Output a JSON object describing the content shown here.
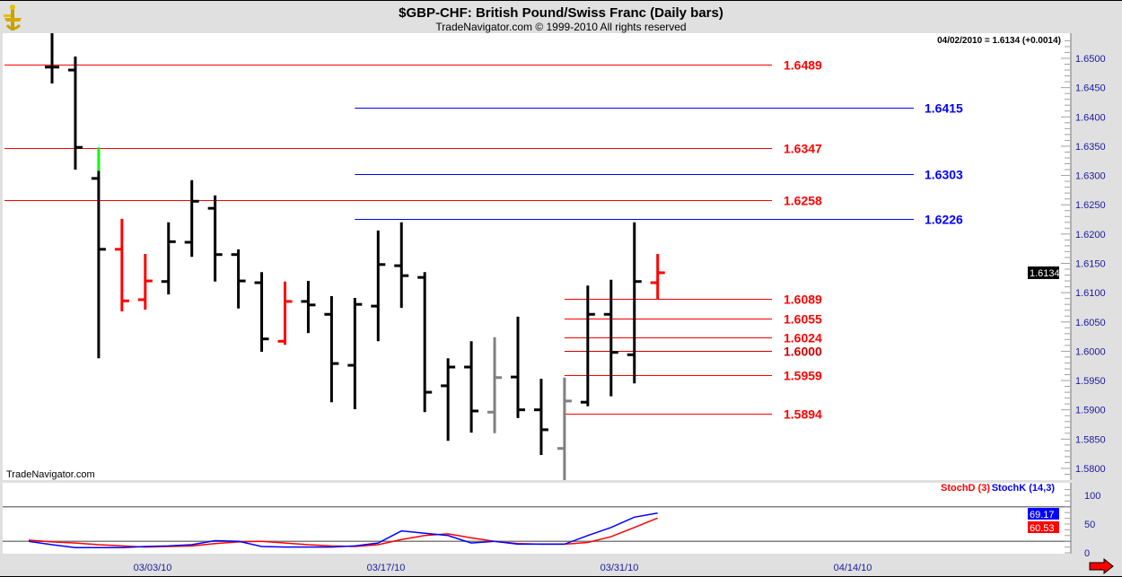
{
  "header": {
    "title": "$GBP-CHF:  British Pound/Swiss Franc  (Daily bars)",
    "subtitle": "TradeNavigator.com © 1999-2010 All rights reserved",
    "last_readout": "04/02/2010 = 1.6134 (+0.0014)",
    "watermark": "TradeNavigator.com"
  },
  "chart_data": [
    {
      "type": "ohlc",
      "ylim": [
        1.578,
        1.655
      ],
      "y_ticks": [
        "1.6500",
        "1.6450",
        "1.6400",
        "1.6350",
        "1.6300",
        "1.6250",
        "1.6200",
        "1.6150",
        "1.6100",
        "1.6050",
        "1.6000",
        "1.5950",
        "1.5900",
        "1.5850",
        "1.5800"
      ],
      "x_tick_labels": [
        "03/03/10",
        "03/17/10",
        "03/31/10",
        "04/14/10"
      ],
      "last_price_label": "1.6134",
      "colors": {
        "default": "#000000",
        "red": "#ff0000",
        "gray": "#808080",
        "green": "#00ff00"
      },
      "bars": [
        {
          "date": "02/25/10",
          "o": 1.6485,
          "h": 1.6545,
          "l": 1.6457,
          "c": 1.6485,
          "color": "default"
        },
        {
          "date": "02/26/10",
          "o": 1.648,
          "h": 1.6503,
          "l": 1.631,
          "c": 1.6348,
          "color": "default"
        },
        {
          "date": "03/01/10",
          "o": 1.6295,
          "h": 1.6348,
          "l": 1.5988,
          "c": 1.6174,
          "color": "default",
          "gap_top": 1.6308
        },
        {
          "date": "03/02/10",
          "o": 1.6174,
          "h": 1.6226,
          "l": 1.6068,
          "c": 1.6086,
          "color": "red"
        },
        {
          "date": "03/03/10",
          "o": 1.6088,
          "h": 1.6166,
          "l": 1.6071,
          "c": 1.612,
          "color": "red"
        },
        {
          "date": "03/04/10",
          "o": 1.6119,
          "h": 1.622,
          "l": 1.6097,
          "c": 1.6187,
          "color": "default"
        },
        {
          "date": "03/05/10",
          "o": 1.6186,
          "h": 1.6292,
          "l": 1.6161,
          "c": 1.6256,
          "color": "default"
        },
        {
          "date": "03/08/10",
          "o": 1.6244,
          "h": 1.6266,
          "l": 1.6119,
          "c": 1.6165,
          "color": "default"
        },
        {
          "date": "03/09/10",
          "o": 1.6165,
          "h": 1.6174,
          "l": 1.6073,
          "c": 1.612,
          "color": "default"
        },
        {
          "date": "03/10/10",
          "o": 1.6117,
          "h": 1.6135,
          "l": 1.5999,
          "c": 1.6021,
          "color": "default"
        },
        {
          "date": "03/11/10",
          "o": 1.6017,
          "h": 1.6119,
          "l": 1.6011,
          "c": 1.6085,
          "color": "red"
        },
        {
          "date": "03/12/10",
          "o": 1.6085,
          "h": 1.612,
          "l": 1.6031,
          "c": 1.6079,
          "color": "default"
        },
        {
          "date": "03/15/10",
          "o": 1.6063,
          "h": 1.6094,
          "l": 1.5913,
          "c": 1.5979,
          "color": "default"
        },
        {
          "date": "03/16/10",
          "o": 1.5976,
          "h": 1.6091,
          "l": 1.5901,
          "c": 1.608,
          "color": "default"
        },
        {
          "date": "03/17/10",
          "o": 1.6077,
          "h": 1.6206,
          "l": 1.6017,
          "c": 1.6148,
          "color": "default"
        },
        {
          "date": "03/18/10",
          "o": 1.6146,
          "h": 1.622,
          "l": 1.6074,
          "c": 1.6129,
          "color": "default"
        },
        {
          "date": "03/19/10",
          "o": 1.6126,
          "h": 1.6135,
          "l": 1.5896,
          "c": 1.593,
          "color": "default"
        },
        {
          "date": "03/22/10",
          "o": 1.5941,
          "h": 1.5988,
          "l": 1.5847,
          "c": 1.5973,
          "color": "default"
        },
        {
          "date": "03/23/10",
          "o": 1.5973,
          "h": 1.6017,
          "l": 1.5861,
          "c": 1.5898,
          "color": "default"
        },
        {
          "date": "03/24/10",
          "o": 1.5896,
          "h": 1.6024,
          "l": 1.586,
          "c": 1.5955,
          "color": "gray"
        },
        {
          "date": "03/25/10",
          "o": 1.5956,
          "h": 1.6059,
          "l": 1.5886,
          "c": 1.59,
          "color": "default"
        },
        {
          "date": "03/26/10",
          "o": 1.59,
          "h": 1.5953,
          "l": 1.5823,
          "c": 1.5866,
          "color": "default"
        },
        {
          "date": "03/29/10",
          "o": 1.5834,
          "h": 1.5955,
          "l": 1.578,
          "c": 1.5915,
          "color": "gray"
        },
        {
          "date": "03/30/10",
          "o": 1.5913,
          "h": 1.6112,
          "l": 1.5906,
          "c": 1.6063,
          "color": "default"
        },
        {
          "date": "03/31/10",
          "o": 1.6063,
          "h": 1.6122,
          "l": 1.5923,
          "c": 1.5998,
          "color": "default"
        },
        {
          "date": "04/01/10",
          "o": 1.5994,
          "h": 1.622,
          "l": 1.5945,
          "c": 1.6119,
          "color": "default"
        },
        {
          "date": "04/02/10",
          "o": 1.6117,
          "h": 1.6166,
          "l": 1.6089,
          "c": 1.6134,
          "color": "red"
        }
      ],
      "levels": [
        {
          "value": 1.6489,
          "label": "1.6489",
          "color": "#ff0000",
          "from": "02/24/10"
        },
        {
          "value": 1.6415,
          "label": "1.6415",
          "color": "#0000ff",
          "from": "03/16/10"
        },
        {
          "value": 1.6347,
          "label": "1.6347",
          "color": "#ff0000",
          "from": "02/24/10"
        },
        {
          "value": 1.6303,
          "label": "1.6303",
          "color": "#0000ff",
          "from": "03/16/10"
        },
        {
          "value": 1.6258,
          "label": "1.6258",
          "color": "#ff0000",
          "from": "02/24/10"
        },
        {
          "value": 1.6226,
          "label": "1.6226",
          "color": "#0000ff",
          "from": "03/16/10"
        },
        {
          "value": 1.6089,
          "label": "1.6089",
          "color": "#ff0000",
          "from": "03/29/10"
        },
        {
          "value": 1.6055,
          "label": "1.6055",
          "color": "#ff0000",
          "from": "03/29/10"
        },
        {
          "value": 1.6024,
          "label": "1.6024",
          "color": "#ff0000",
          "from": "03/29/10"
        },
        {
          "value": 1.6,
          "label": "1.6000",
          "color": "#cc0000",
          "from": "03/29/10"
        },
        {
          "value": 1.5959,
          "label": "1.5959",
          "color": "#ff0000",
          "from": "03/29/10"
        },
        {
          "value": 1.5894,
          "label": "1.5894",
          "color": "#ff0000",
          "from": "03/29/10"
        }
      ]
    },
    {
      "type": "line",
      "ylim": [
        0,
        100
      ],
      "y_ticks": [
        "100",
        "50",
        "0"
      ],
      "guide_lines": [
        80,
        20
      ],
      "x": [
        "02/24/10",
        "02/25/10",
        "02/26/10",
        "03/01/10",
        "03/02/10",
        "03/03/10",
        "03/04/10",
        "03/05/10",
        "03/08/10",
        "03/09/10",
        "03/10/10",
        "03/11/10",
        "03/12/10",
        "03/15/10",
        "03/16/10",
        "03/17/10",
        "03/18/10",
        "03/19/10",
        "03/22/10",
        "03/23/10",
        "03/24/10",
        "03/25/10",
        "03/26/10",
        "03/29/10",
        "03/30/10",
        "03/31/10",
        "04/01/10",
        "04/02/10"
      ],
      "series": [
        {
          "name": "StochD (3)",
          "color": "#ff0000",
          "last_label": "60.53",
          "values": [
            22,
            19,
            17,
            14,
            12,
            10,
            11,
            12,
            16,
            19,
            20,
            17,
            14,
            12,
            11,
            14,
            23,
            30,
            33,
            26,
            20,
            16,
            15,
            15,
            18,
            28,
            44,
            60.53
          ]
        },
        {
          "name": "StochK (14,3)",
          "color": "#0000ff",
          "last_label": "69.17",
          "values": [
            20,
            14,
            9,
            9,
            9,
            11,
            12,
            14,
            21,
            20,
            11,
            10,
            10,
            10,
            12,
            17,
            38,
            34,
            30,
            17,
            20,
            15,
            15,
            15,
            30,
            44,
            62,
            69.17
          ]
        }
      ]
    }
  ],
  "nav": {
    "scroll_right_icon": "red-right-arrow-icon"
  }
}
